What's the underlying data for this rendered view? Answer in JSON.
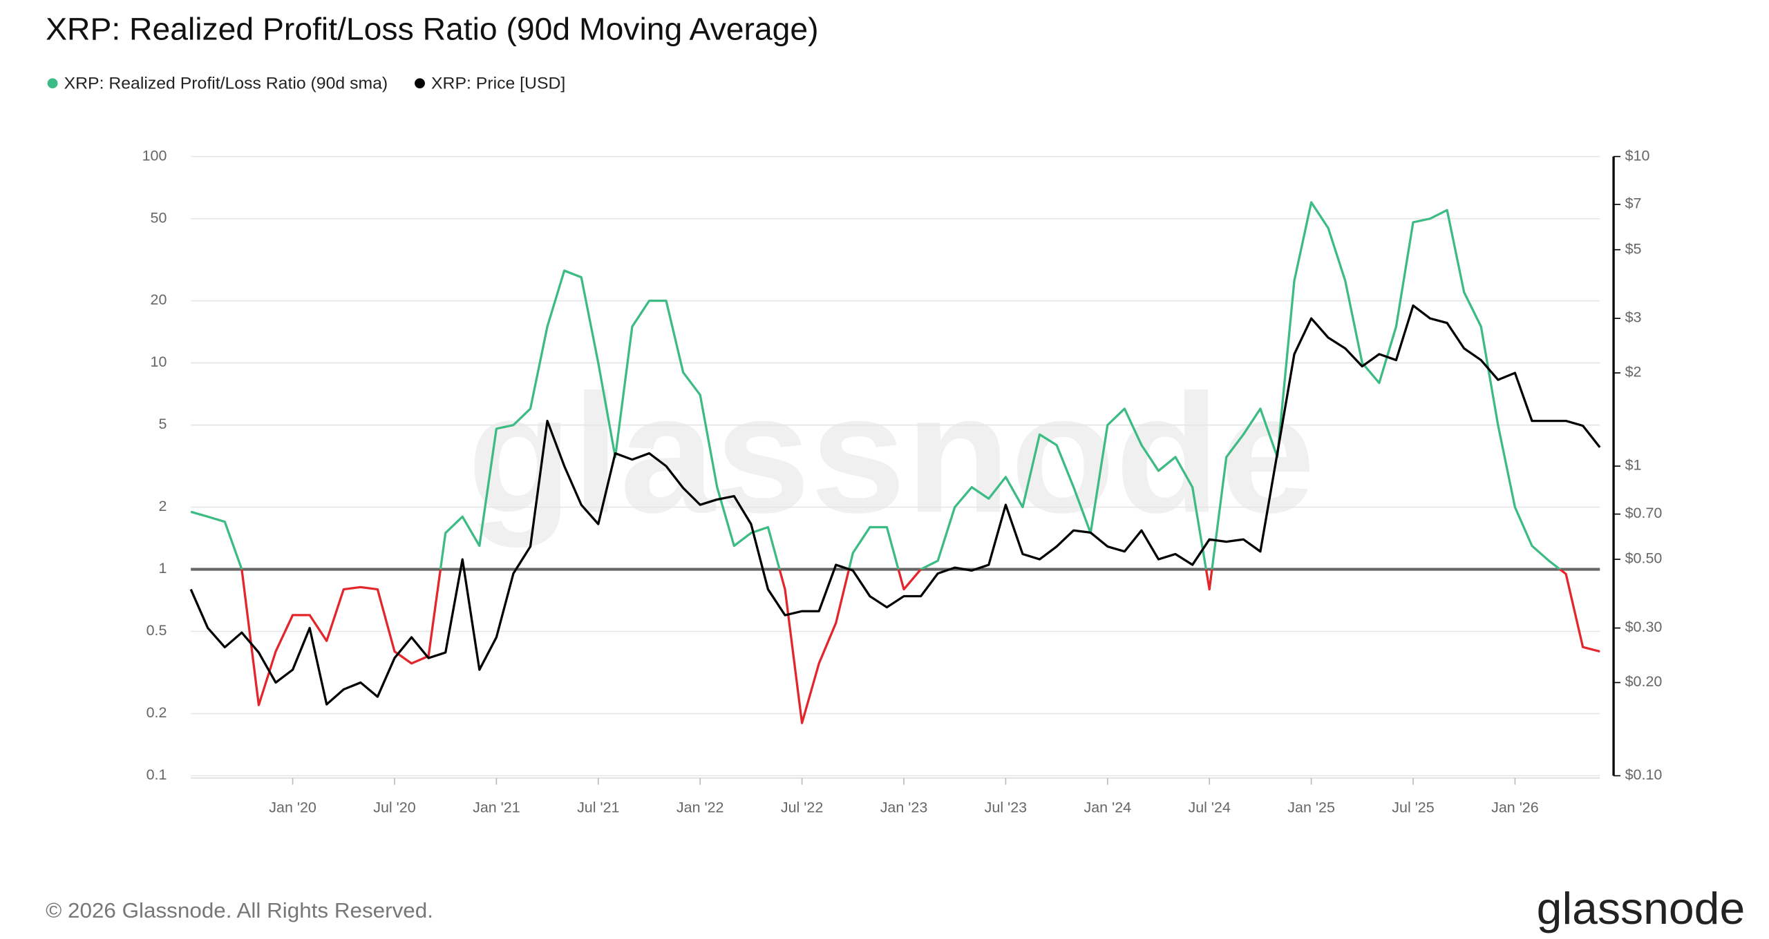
{
  "chart_data": {
    "type": "line",
    "title": "XRP: Realized Profit/Loss Ratio (90d Moving Average)",
    "watermark": "glassnode",
    "log_y": true,
    "log_y2": true,
    "grid": true,
    "legend": "top-left",
    "reference_line": 1,
    "color_below_reference": "#e3262c",
    "xlim": [
      "2019-07",
      "2026-06"
    ],
    "xticks": [
      {
        "value": "2020-01",
        "label": "Jan '20"
      },
      {
        "value": "2020-07",
        "label": "Jul '20"
      },
      {
        "value": "2021-01",
        "label": "Jan '21"
      },
      {
        "value": "2021-07",
        "label": "Jul '21"
      },
      {
        "value": "2022-01",
        "label": "Jan '22"
      },
      {
        "value": "2022-07",
        "label": "Jul '22"
      },
      {
        "value": "2023-01",
        "label": "Jan '23"
      },
      {
        "value": "2023-07",
        "label": "Jul '23"
      },
      {
        "value": "2024-01",
        "label": "Jan '24"
      },
      {
        "value": "2024-07",
        "label": "Jul '24"
      },
      {
        "value": "2025-01",
        "label": "Jan '25"
      },
      {
        "value": "2025-07",
        "label": "Jul '25"
      },
      {
        "value": "2026-01",
        "label": "Jan '26"
      }
    ],
    "ylim": [
      0.1,
      100
    ],
    "yticks": [
      0.1,
      0.2,
      0.5,
      1,
      2,
      5,
      10,
      20,
      50,
      100
    ],
    "y2lim": [
      0.1,
      10
    ],
    "y2ticks": [
      {
        "value": 0.1,
        "label": "$0.10"
      },
      {
        "value": 0.2,
        "label": "$0.20"
      },
      {
        "value": 0.3,
        "label": "$0.30"
      },
      {
        "value": 0.5,
        "label": "$0.50"
      },
      {
        "value": 0.7,
        "label": "$0.70"
      },
      {
        "value": 1,
        "label": "$1"
      },
      {
        "value": 2,
        "label": "$2"
      },
      {
        "value": 3,
        "label": "$3"
      },
      {
        "value": 5,
        "label": "$5"
      },
      {
        "value": 7,
        "label": "$7"
      },
      {
        "value": 10,
        "label": "$10"
      }
    ],
    "x": [
      "2019-07",
      "2019-08",
      "2019-09",
      "2019-10",
      "2019-11",
      "2019-12",
      "2020-01",
      "2020-02",
      "2020-03",
      "2020-04",
      "2020-05",
      "2020-06",
      "2020-07",
      "2020-08",
      "2020-09",
      "2020-10",
      "2020-11",
      "2020-12",
      "2021-01",
      "2021-02",
      "2021-03",
      "2021-04",
      "2021-05",
      "2021-06",
      "2021-07",
      "2021-08",
      "2021-09",
      "2021-10",
      "2021-11",
      "2021-12",
      "2022-01",
      "2022-02",
      "2022-03",
      "2022-04",
      "2022-05",
      "2022-06",
      "2022-07",
      "2022-08",
      "2022-09",
      "2022-10",
      "2022-11",
      "2022-12",
      "2023-01",
      "2023-02",
      "2023-03",
      "2023-04",
      "2023-05",
      "2023-06",
      "2023-07",
      "2023-08",
      "2023-09",
      "2023-10",
      "2023-11",
      "2023-12",
      "2024-01",
      "2024-02",
      "2024-03",
      "2024-04",
      "2024-05",
      "2024-06",
      "2024-07",
      "2024-08",
      "2024-09",
      "2024-10",
      "2024-11",
      "2024-12",
      "2025-01",
      "2025-02",
      "2025-03",
      "2025-04",
      "2025-05",
      "2025-06",
      "2025-07",
      "2025-08",
      "2025-09",
      "2025-10",
      "2025-11",
      "2025-12",
      "2026-01",
      "2026-02",
      "2026-03",
      "2026-04",
      "2026-05",
      "2026-06"
    ],
    "series": [
      {
        "name": "XRP: Realized Profit/Loss Ratio (90d sma)",
        "color": "#3dbb84",
        "values": [
          1.9,
          1.8,
          1.7,
          1.0,
          0.22,
          0.4,
          0.6,
          0.6,
          0.45,
          0.8,
          0.82,
          0.8,
          0.4,
          0.35,
          0.38,
          1.5,
          1.8,
          1.3,
          4.8,
          5,
          6,
          15,
          28,
          26,
          10,
          3.5,
          15,
          20,
          20,
          9,
          7,
          2.5,
          1.3,
          1.5,
          1.6,
          0.8,
          0.18,
          0.35,
          0.55,
          1.2,
          1.6,
          1.6,
          0.8,
          1.0,
          1.1,
          2.0,
          2.5,
          2.2,
          2.8,
          2.0,
          4.5,
          4,
          2.5,
          1.5,
          5,
          6,
          4,
          3,
          3.5,
          2.5,
          0.8,
          3.5,
          4.5,
          6,
          3.5,
          25,
          60,
          45,
          25,
          10,
          8,
          15,
          48,
          50,
          55,
          22,
          15,
          5,
          2,
          1.3,
          1.1,
          0.95,
          0.42,
          0.4
        ]
      },
      {
        "name": "XRP: Price [USD]",
        "color": "#000000",
        "axis": "y2",
        "values": [
          0.4,
          0.3,
          0.26,
          0.29,
          0.25,
          0.2,
          0.22,
          0.3,
          0.17,
          0.19,
          0.2,
          0.18,
          0.24,
          0.28,
          0.24,
          0.25,
          0.5,
          0.22,
          0.28,
          0.45,
          0.55,
          1.4,
          1.0,
          0.75,
          0.65,
          1.1,
          1.05,
          1.1,
          1.0,
          0.85,
          0.75,
          0.78,
          0.8,
          0.65,
          0.4,
          0.33,
          0.34,
          0.34,
          0.48,
          0.46,
          0.38,
          0.35,
          0.38,
          0.38,
          0.45,
          0.47,
          0.46,
          0.48,
          0.75,
          0.52,
          0.5,
          0.55,
          0.62,
          0.61,
          0.55,
          0.53,
          0.62,
          0.5,
          0.52,
          0.48,
          0.58,
          0.57,
          0.58,
          0.53,
          1.1,
          2.3,
          3.0,
          2.6,
          2.4,
          2.1,
          2.3,
          2.2,
          3.3,
          3.0,
          2.9,
          2.4,
          2.2,
          1.9,
          2.0,
          1.4,
          1.4,
          1.4,
          1.35,
          1.15
        ]
      }
    ]
  },
  "footer": {
    "copyright": "© 2026 Glassnode. All Rights Reserved.",
    "logo": "glassnode"
  }
}
